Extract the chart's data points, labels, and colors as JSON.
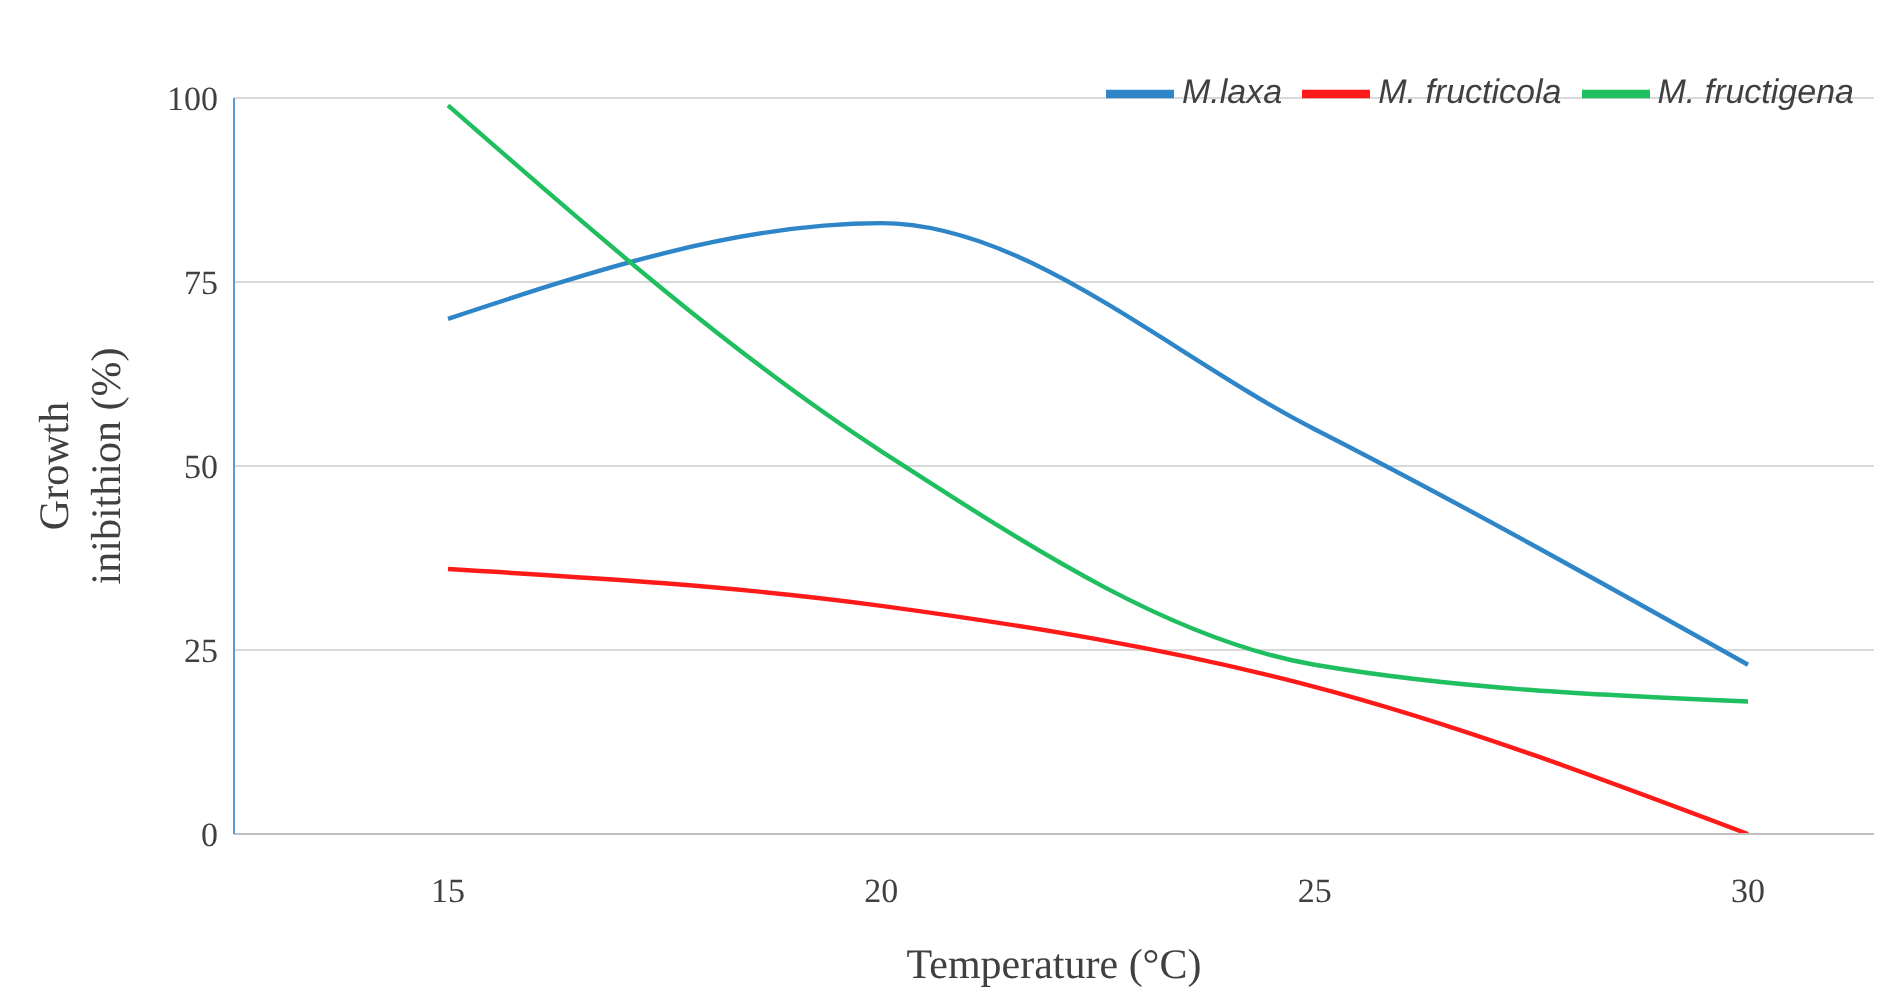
{
  "chart_data": {
    "type": "line",
    "xlabel": "Temperature (°C)",
    "ylabel": "Growth inibithion (%)",
    "categories": [
      "15",
      "20",
      "25",
      "30"
    ],
    "series": [
      {
        "name": "M.laxa",
        "color": "#2e86c8",
        "values": [
          70,
          83,
          55,
          23
        ]
      },
      {
        "name": "M. fructicola",
        "color": "#ff1a1a",
        "values": [
          36,
          31,
          20,
          0
        ]
      },
      {
        "name": "M. fructigena",
        "color": "#1fbf5f",
        "values": [
          99,
          52,
          23,
          18
        ]
      }
    ],
    "ylim": [
      0,
      100
    ],
    "yticks": [
      0,
      25,
      50,
      75,
      100
    ],
    "grid": "y",
    "legend": "top right",
    "marker": "none",
    "line_style": "solid"
  }
}
